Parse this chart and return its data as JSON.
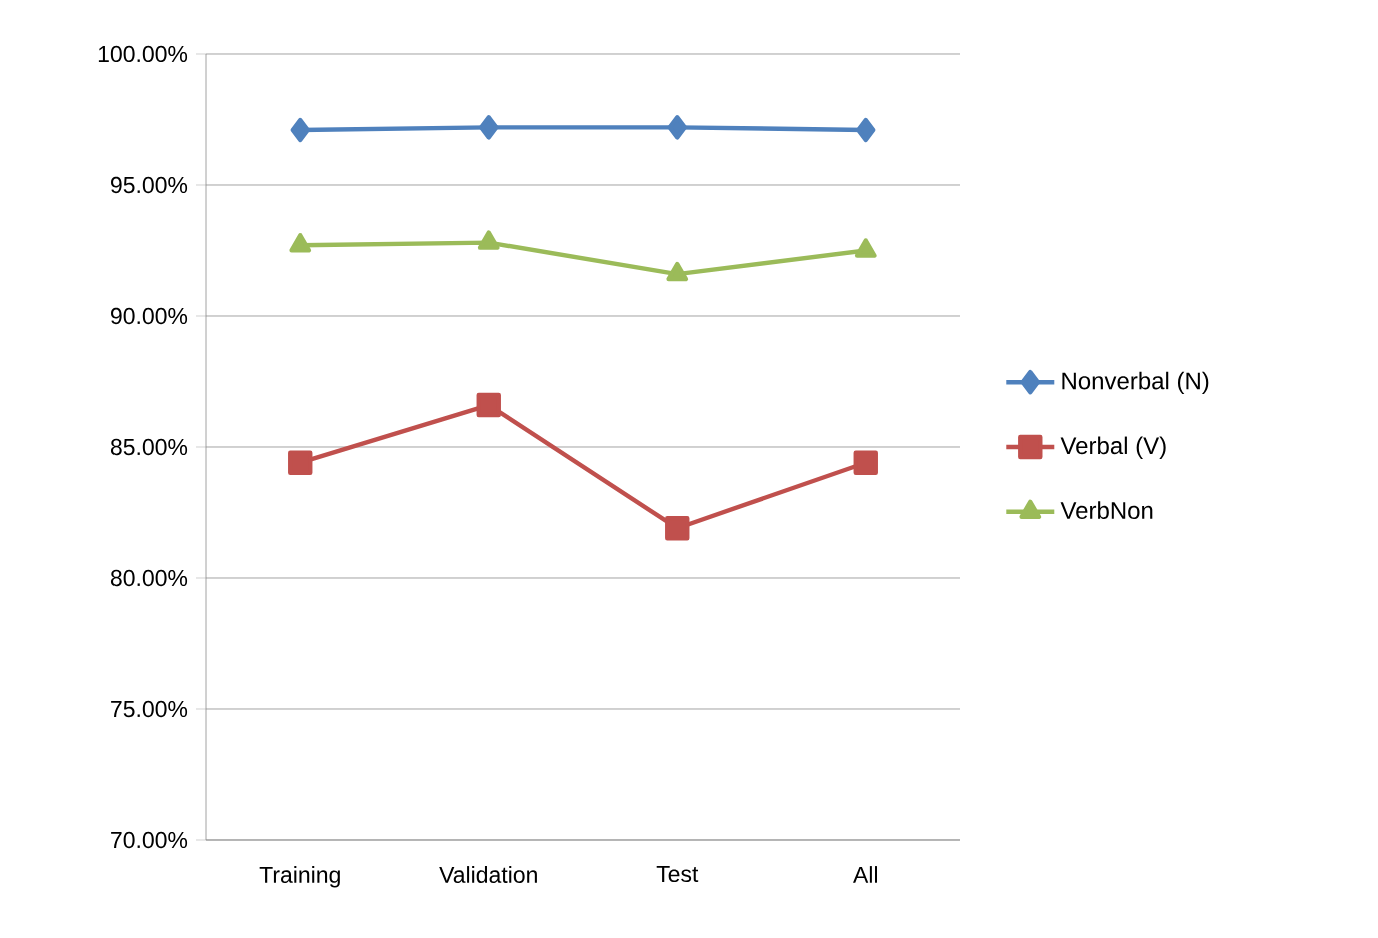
{
  "chart_data": {
    "type": "line",
    "categories": [
      "Training",
      "Validation",
      "Test",
      "All"
    ],
    "series": [
      {
        "name": "Nonverbal (N)",
        "color": "#4f81bd",
        "marker": "diamond",
        "values": [
          97.1,
          97.2,
          97.2,
          97.1
        ]
      },
      {
        "name": "Verbal (V)",
        "color": "#c0504d",
        "marker": "square",
        "values": [
          84.4,
          86.6,
          81.9,
          84.4
        ]
      },
      {
        "name": "VerbNon",
        "color": "#9bbb59",
        "marker": "triangle",
        "values": [
          92.7,
          92.8,
          91.6,
          92.5
        ]
      }
    ],
    "ylim": [
      70,
      100
    ],
    "yticks": [
      {
        "value": 70,
        "label": "70.00%"
      },
      {
        "value": 75,
        "label": "75.00%"
      },
      {
        "value": 80,
        "label": "80.00%"
      },
      {
        "value": 85,
        "label": "85.00%"
      },
      {
        "value": 90,
        "label": "90.00%"
      },
      {
        "value": 95,
        "label": "95.00%"
      },
      {
        "value": 100,
        "label": "100.00%"
      }
    ],
    "grid": "y",
    "legend": "right",
    "line_style": "solid"
  }
}
